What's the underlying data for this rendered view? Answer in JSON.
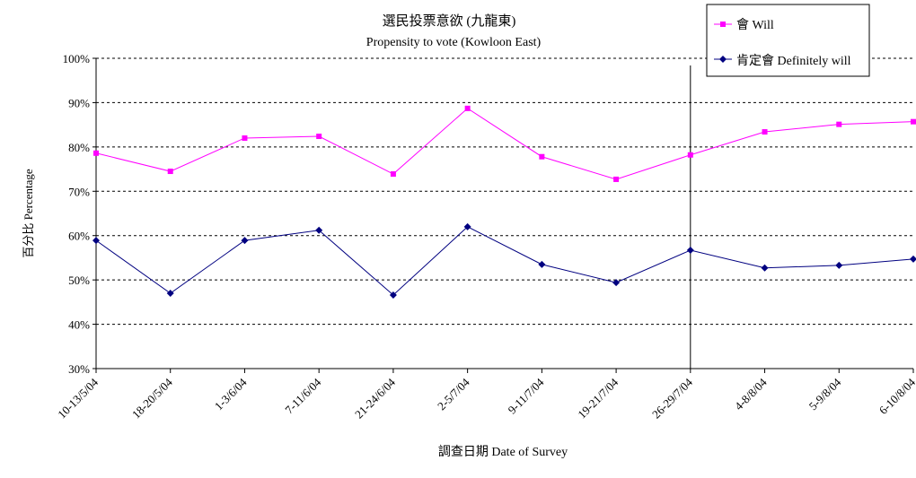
{
  "chart_data": {
    "type": "line",
    "title": "選民投票意欲 (九龍東)",
    "subtitle": "Propensity to vote (Kowloon East)",
    "xlabel": "調查日期 Date of Survey",
    "ylabel": "百分比 Percentage",
    "ylim": [
      30,
      100
    ],
    "yticks": [
      "30%",
      "40%",
      "50%",
      "60%",
      "70%",
      "80%",
      "90%",
      "100%"
    ],
    "grid": true,
    "legend_position": "top-right",
    "categories": [
      "10-13/5/04",
      "18-20/5/04",
      "1-3/6/04",
      "7-11/6/04",
      "21-24/6/04",
      "2-5/7/04",
      "9-11/7/04",
      "19-21/7/04",
      "26-29/7/04",
      "4-8/8/04",
      "5-9/8/04",
      "6-10/8/04"
    ],
    "marker_line_after_category": "26-29/7/04",
    "series": [
      {
        "name": "會 Will",
        "color": "#FF00FF",
        "marker": "square",
        "values": [
          78.6,
          74.5,
          82.0,
          82.4,
          73.9,
          88.7,
          77.8,
          72.7,
          78.2,
          83.4,
          85.1,
          85.7
        ]
      },
      {
        "name": "肯定會 Definitely will",
        "color": "#000080",
        "marker": "diamond",
        "values": [
          58.9,
          47.0,
          58.9,
          61.2,
          46.6,
          62.0,
          53.5,
          49.4,
          56.7,
          52.7,
          53.3,
          54.7
        ]
      }
    ]
  }
}
